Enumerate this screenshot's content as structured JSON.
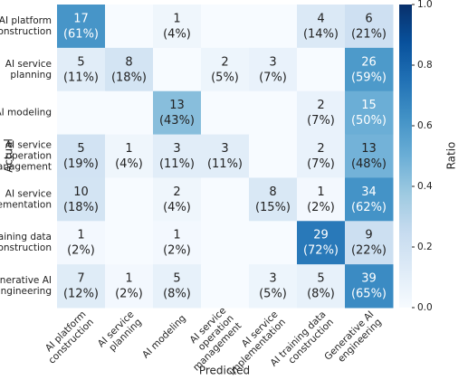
{
  "chart_data": {
    "type": "heatmap",
    "x_label": "Predicted",
    "y_label": "Actual",
    "colorbar_label": "Ratio",
    "x_categories": [
      "AI platform\nconstruction",
      "AI service\nplanning",
      "AI modeling",
      "AI service\noperation\nmanagement",
      "AI service\nimplementation",
      "AI training data\nconstruction",
      "Generative AI\nengineering"
    ],
    "y_categories": [
      "AI platform\nconstruction",
      "AI service\nplanning",
      "AI modeling",
      "AI service\noperation\nmanagement",
      "AI service\nimplementation",
      "AI training data\nconstruction",
      "Generative AI\nengineering"
    ],
    "values": [
      [
        17,
        null,
        1,
        null,
        null,
        4,
        6
      ],
      [
        5,
        8,
        null,
        2,
        3,
        null,
        26
      ],
      [
        null,
        null,
        13,
        null,
        null,
        2,
        15
      ],
      [
        5,
        1,
        3,
        3,
        null,
        2,
        13
      ],
      [
        10,
        null,
        2,
        null,
        8,
        1,
        34
      ],
      [
        1,
        null,
        1,
        null,
        null,
        29,
        9
      ],
      [
        7,
        1,
        5,
        null,
        3,
        5,
        39
      ]
    ],
    "ratios": [
      [
        0.61,
        0,
        0.04,
        0,
        0,
        0.14,
        0.21
      ],
      [
        0.11,
        0.18,
        0,
        0.05,
        0.07,
        0,
        0.59
      ],
      [
        0,
        0,
        0.43,
        0,
        0,
        0.07,
        0.5
      ],
      [
        0.19,
        0.04,
        0.11,
        0.11,
        0,
        0.07,
        0.48
      ],
      [
        0.18,
        0,
        0.04,
        0,
        0.15,
        0.02,
        0.62
      ],
      [
        0.02,
        0,
        0.02,
        0,
        0,
        0.72,
        0.22
      ],
      [
        0.12,
        0.02,
        0.08,
        0,
        0.05,
        0.08,
        0.65
      ]
    ],
    "ratio_labels": [
      [
        "(61%)",
        null,
        "(4%)",
        null,
        null,
        "(14%)",
        "(21%)"
      ],
      [
        "(11%)",
        "(18%)",
        null,
        "(5%)",
        "(7%)",
        null,
        "(59%)"
      ],
      [
        null,
        null,
        "(43%)",
        null,
        null,
        "(7%)",
        "(50%)"
      ],
      [
        "(19%)",
        "(4%)",
        "(11%)",
        "(11%)",
        null,
        "(7%)",
        "(48%)"
      ],
      [
        "(18%)",
        null,
        "(4%)",
        null,
        "(15%)",
        "(2%)",
        "(62%)"
      ],
      [
        "(2%)",
        null,
        "(2%)",
        null,
        null,
        "(72%)",
        "(22%)"
      ],
      [
        "(12%)",
        "(2%)",
        "(8%)",
        null,
        "(5%)",
        "(8%)",
        "(65%)"
      ]
    ],
    "clim": [
      0,
      1
    ],
    "cticks": [
      {
        "value": 0,
        "label": "0.0"
      },
      0.2,
      0.4,
      0.6,
      0.8,
      {
        "value": 1,
        "label": "1.0"
      }
    ],
    "colorscale": [
      "#f7fbff",
      "#deebf7",
      "#c6dbef",
      "#9ecae1",
      "#6baed6",
      "#4292c6",
      "#2171b5",
      "#08519c",
      "#08306b"
    ]
  }
}
